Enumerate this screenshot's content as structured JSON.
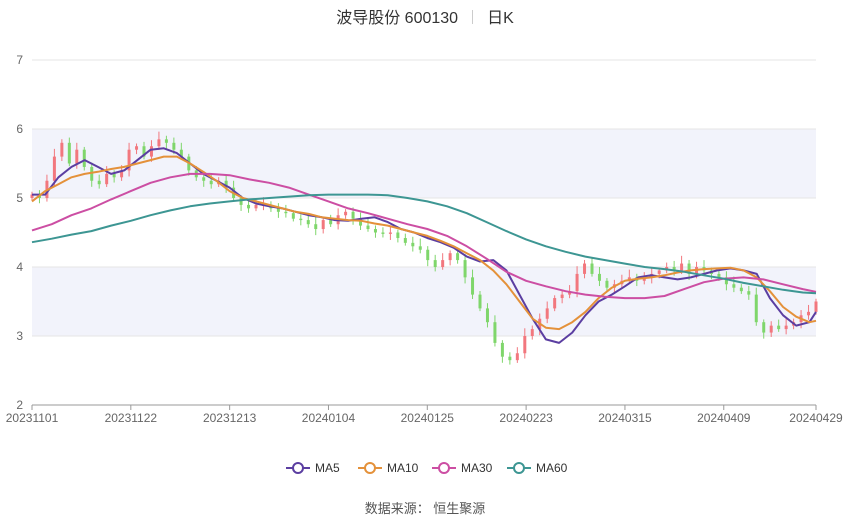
{
  "header": {
    "stock_name": "波导股份 600130",
    "period": "日K"
  },
  "source": "数据来源： 恒生聚源",
  "colors": {
    "up": "#f2777e",
    "down": "#7fd66b",
    "band": "#f2f3fb",
    "grid": "#e6e6e6",
    "axis_text": "#666666"
  },
  "chart_data": {
    "type": "line",
    "ylim": [
      2,
      7
    ],
    "yticks": [
      2,
      3,
      4,
      5,
      6,
      7
    ],
    "x_tick_labels": [
      "20231101",
      "20231122",
      "20231213",
      "20240104",
      "20240125",
      "20240223",
      "20240315",
      "20240409",
      "20240429"
    ],
    "x_tick_pos": [
      0,
      15,
      30,
      45,
      60,
      75,
      90,
      105,
      119
    ],
    "ohlc_closes": [
      5.05,
      5.0,
      5.25,
      5.6,
      5.8,
      5.5,
      5.7,
      5.45,
      5.25,
      5.2,
      5.35,
      5.3,
      5.4,
      5.7,
      5.75,
      5.6,
      5.75,
      5.85,
      5.8,
      5.7,
      5.6,
      5.4,
      5.3,
      5.25,
      5.2,
      5.25,
      5.15,
      5.0,
      4.9,
      4.85,
      4.9,
      4.9,
      4.85,
      4.8,
      4.78,
      4.7,
      4.68,
      4.62,
      4.55,
      4.68,
      4.62,
      4.75,
      4.8,
      4.7,
      4.6,
      4.55,
      4.5,
      4.48,
      4.5,
      4.42,
      4.35,
      4.3,
      4.25,
      4.1,
      4.0,
      4.1,
      4.2,
      4.1,
      3.85,
      3.6,
      3.4,
      3.2,
      2.9,
      2.7,
      2.65,
      2.75,
      3.0,
      3.1,
      3.25,
      3.4,
      3.55,
      3.6,
      3.65,
      3.9,
      4.05,
      3.9,
      3.8,
      3.7,
      3.75,
      3.8,
      3.85,
      3.8,
      3.85,
      3.9,
      3.95,
      4.0,
      3.95,
      4.05,
      3.9,
      4.0,
      3.95,
      3.9,
      3.85,
      3.75,
      3.7,
      3.65,
      3.6,
      3.2,
      3.05,
      3.15,
      3.1,
      3.15,
      3.2,
      3.3,
      3.35,
      3.5
    ],
    "series": [
      {
        "name": "MA5",
        "color": "#5b3ea1",
        "x": [
          0,
          2,
          4,
          6,
          8,
          10,
          12,
          14,
          16,
          18,
          20,
          22,
          24,
          26,
          28,
          30,
          32,
          34,
          36,
          38,
          40,
          42,
          44,
          46,
          48,
          50,
          52,
          54,
          56,
          58,
          60,
          62,
          64,
          66,
          68,
          70,
          72,
          74,
          76,
          78,
          80,
          82,
          84,
          86,
          88,
          90,
          92,
          94,
          96,
          98,
          100,
          102,
          104,
          106,
          108,
          110,
          112,
          114,
          116,
          118,
          119
        ],
        "values": [
          5.05,
          5.05,
          5.3,
          5.45,
          5.55,
          5.45,
          5.35,
          5.4,
          5.55,
          5.7,
          5.72,
          5.65,
          5.5,
          5.35,
          5.25,
          5.15,
          5.0,
          4.92,
          4.88,
          4.85,
          4.8,
          4.75,
          4.72,
          4.68,
          4.67,
          4.7,
          4.72,
          4.65,
          4.55,
          4.5,
          4.42,
          4.36,
          4.28,
          4.15,
          4.08,
          4.1,
          3.95,
          3.6,
          3.25,
          2.95,
          2.9,
          3.05,
          3.3,
          3.5,
          3.6,
          3.72,
          3.85,
          3.88,
          3.85,
          3.82,
          3.85,
          3.9,
          3.95,
          3.98,
          3.95,
          3.9,
          3.55,
          3.3,
          3.15,
          3.2,
          3.35
        ]
      },
      {
        "name": "MA10",
        "color": "#e4913a",
        "x": [
          0,
          2,
          4,
          6,
          8,
          10,
          12,
          14,
          16,
          18,
          20,
          22,
          24,
          26,
          28,
          30,
          32,
          34,
          36,
          38,
          40,
          42,
          44,
          46,
          48,
          50,
          52,
          54,
          56,
          58,
          60,
          62,
          64,
          66,
          68,
          70,
          72,
          74,
          76,
          78,
          80,
          82,
          84,
          86,
          88,
          90,
          92,
          94,
          96,
          98,
          100,
          102,
          104,
          106,
          108,
          110,
          112,
          114,
          116,
          118,
          119
        ],
        "values": [
          4.95,
          5.1,
          5.2,
          5.3,
          5.35,
          5.38,
          5.42,
          5.45,
          5.5,
          5.55,
          5.6,
          5.6,
          5.5,
          5.38,
          5.25,
          5.1,
          5.0,
          4.95,
          4.9,
          4.85,
          4.8,
          4.77,
          4.72,
          4.7,
          4.68,
          4.67,
          4.63,
          4.6,
          4.55,
          4.5,
          4.45,
          4.38,
          4.3,
          4.2,
          4.1,
          3.95,
          3.75,
          3.5,
          3.25,
          3.12,
          3.1,
          3.2,
          3.35,
          3.55,
          3.7,
          3.8,
          3.83,
          3.85,
          3.88,
          3.92,
          3.95,
          3.97,
          3.98,
          3.99,
          3.95,
          3.85,
          3.65,
          3.42,
          3.28,
          3.2,
          3.22
        ]
      },
      {
        "name": "MA30",
        "color": "#cc4ea3",
        "x": [
          0,
          3,
          6,
          9,
          12,
          15,
          18,
          21,
          24,
          27,
          30,
          33,
          36,
          39,
          42,
          45,
          48,
          51,
          54,
          57,
          60,
          63,
          66,
          69,
          72,
          75,
          78,
          81,
          84,
          87,
          90,
          93,
          96,
          99,
          102,
          105,
          108,
          111,
          114,
          117,
          119
        ],
        "values": [
          4.53,
          4.62,
          4.75,
          4.85,
          4.98,
          5.1,
          5.22,
          5.3,
          5.35,
          5.35,
          5.33,
          5.27,
          5.22,
          5.15,
          5.05,
          4.95,
          4.85,
          4.78,
          4.7,
          4.62,
          4.55,
          4.45,
          4.3,
          4.12,
          3.93,
          3.8,
          3.72,
          3.65,
          3.6,
          3.57,
          3.55,
          3.55,
          3.58,
          3.68,
          3.78,
          3.83,
          3.85,
          3.82,
          3.75,
          3.68,
          3.64
        ]
      },
      {
        "name": "MA60",
        "color": "#3d9693",
        "x": [
          0,
          3,
          6,
          9,
          12,
          15,
          18,
          21,
          24,
          27,
          30,
          33,
          36,
          39,
          42,
          45,
          48,
          51,
          54,
          57,
          60,
          63,
          66,
          69,
          72,
          75,
          78,
          81,
          84,
          87,
          90,
          93,
          96,
          99,
          102,
          105,
          108,
          111,
          114,
          117,
          119
        ],
        "values": [
          4.36,
          4.41,
          4.47,
          4.52,
          4.6,
          4.67,
          4.75,
          4.82,
          4.88,
          4.92,
          4.95,
          4.98,
          5.0,
          5.02,
          5.04,
          5.05,
          5.05,
          5.05,
          5.04,
          5.0,
          4.95,
          4.88,
          4.78,
          4.65,
          4.52,
          4.4,
          4.3,
          4.22,
          4.15,
          4.1,
          4.05,
          4.0,
          3.97,
          3.93,
          3.88,
          3.83,
          3.77,
          3.72,
          3.67,
          3.63,
          3.62
        ]
      }
    ]
  }
}
